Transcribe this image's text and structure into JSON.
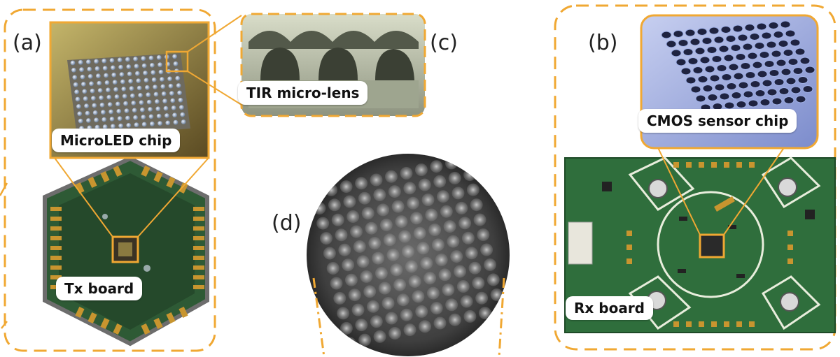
{
  "panels": {
    "a": {
      "letter": "(a)",
      "board_label": "Tx board",
      "chip_label": "MicroLED chip"
    },
    "b": {
      "letter": "(b)",
      "board_label": "Rx board",
      "chip_label": "CMOS sensor chip"
    },
    "c": {
      "letter": "(c)",
      "lens_label": "TIR micro-lens"
    },
    "d": {
      "letter": "(d)"
    }
  },
  "colors": {
    "accent_orange": "#f0a833",
    "pcb_green": "#2f6e3c",
    "gold_pad": "#c8952f",
    "sensor_blue": "#8fa0d8"
  }
}
